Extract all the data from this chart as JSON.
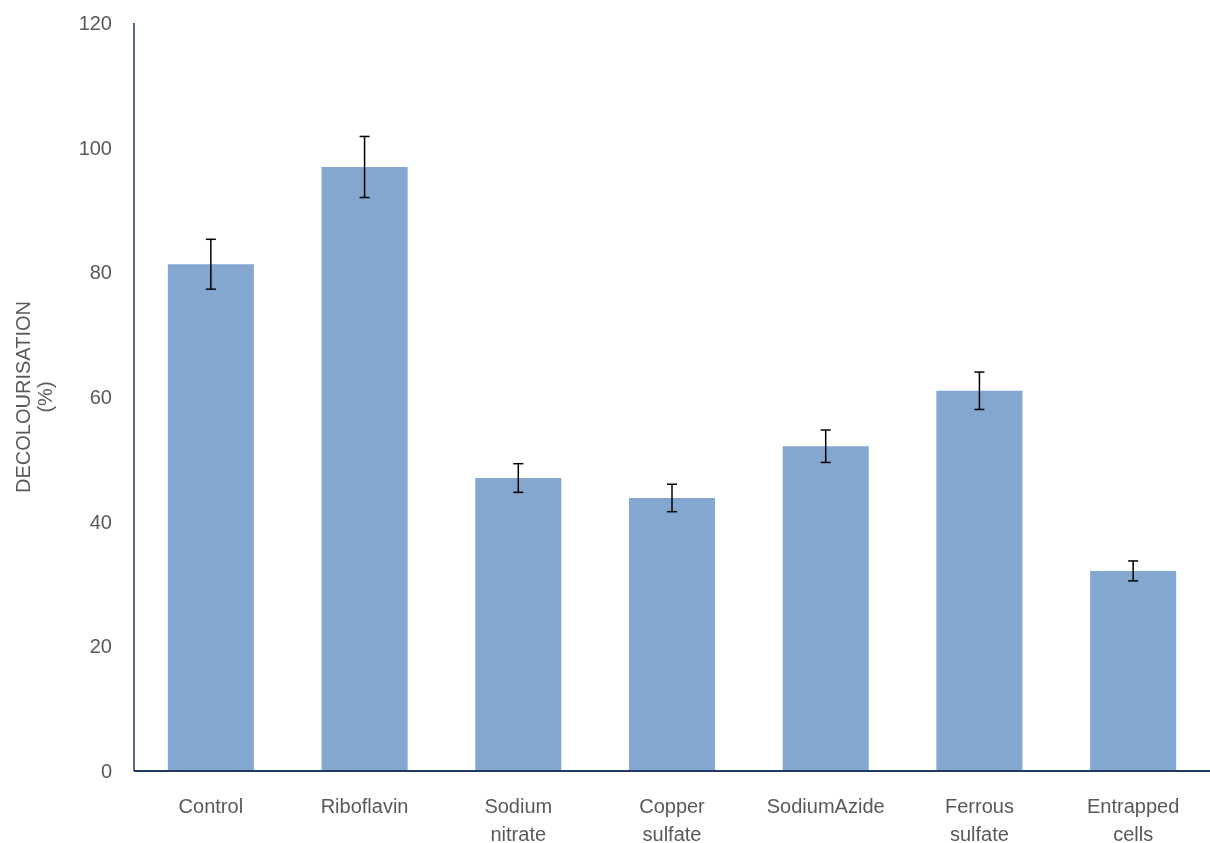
{
  "chart_data": {
    "type": "bar",
    "ylabel": "DECOLOURISATION (%)",
    "categories": [
      "Control",
      "Riboflavin",
      "Sodium nitrate",
      "Copper sulfate",
      "SodiumAzide",
      "Ferrous sulfate",
      "Entrapped cells"
    ],
    "values": [
      81.3,
      96.9,
      47.0,
      43.8,
      52.1,
      61.0,
      32.1
    ],
    "errors": [
      4.0,
      4.9,
      2.3,
      2.2,
      2.6,
      3.0,
      1.6
    ],
    "color": "#84a7d0",
    "ylim": [
      0,
      120
    ],
    "yticks": [
      0,
      20,
      40,
      60,
      80,
      100,
      120
    ],
    "grid": false
  }
}
